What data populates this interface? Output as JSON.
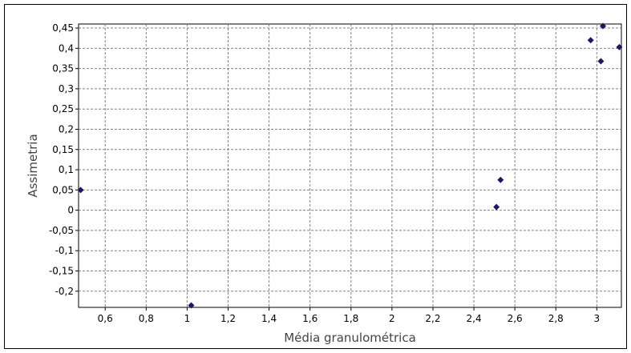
{
  "chart_data": {
    "type": "scatter",
    "title": "",
    "xlabel": "Média granulométrica",
    "ylabel": "Assimetria",
    "xlim": [
      0.47,
      3.12
    ],
    "ylim": [
      -0.24,
      0.46
    ],
    "grid": true,
    "legend": "none",
    "marker_color": "#1a1a5e",
    "x_ticks": [
      0.6,
      0.8,
      1,
      1.2,
      1.4,
      1.6,
      1.8,
      2,
      2.2,
      2.4,
      2.6,
      2.8,
      3
    ],
    "x_tick_labels": [
      "0,6",
      "0,8",
      "1",
      "1,2",
      "1,4",
      "1,6",
      "1,8",
      "2",
      "2,2",
      "2,4",
      "2,6",
      "2,8",
      "3"
    ],
    "y_ticks": [
      0.45,
      0.4,
      0.35,
      0.3,
      0.25,
      0.2,
      0.15,
      0.1,
      0.05,
      0,
      -0.05,
      -0.1,
      -0.15,
      -0.2
    ],
    "y_tick_labels": [
      "0,45",
      "0,4",
      "0,35",
      "0,3",
      "0,25",
      "0,2",
      "0,15",
      "0,1",
      "0,05",
      "0",
      "-0,05",
      "-0,1",
      "-0,15",
      "-0,2"
    ],
    "series": [
      {
        "points": [
          {
            "x": 0.48,
            "y": 0.05
          },
          {
            "x": 1.02,
            "y": -0.235
          },
          {
            "x": 2.51,
            "y": 0.008
          },
          {
            "x": 2.53,
            "y": 0.075
          },
          {
            "x": 2.97,
            "y": 0.42
          },
          {
            "x": 3.02,
            "y": 0.368
          },
          {
            "x": 3.03,
            "y": 0.455
          },
          {
            "x": 3.11,
            "y": 0.403
          }
        ]
      }
    ]
  }
}
